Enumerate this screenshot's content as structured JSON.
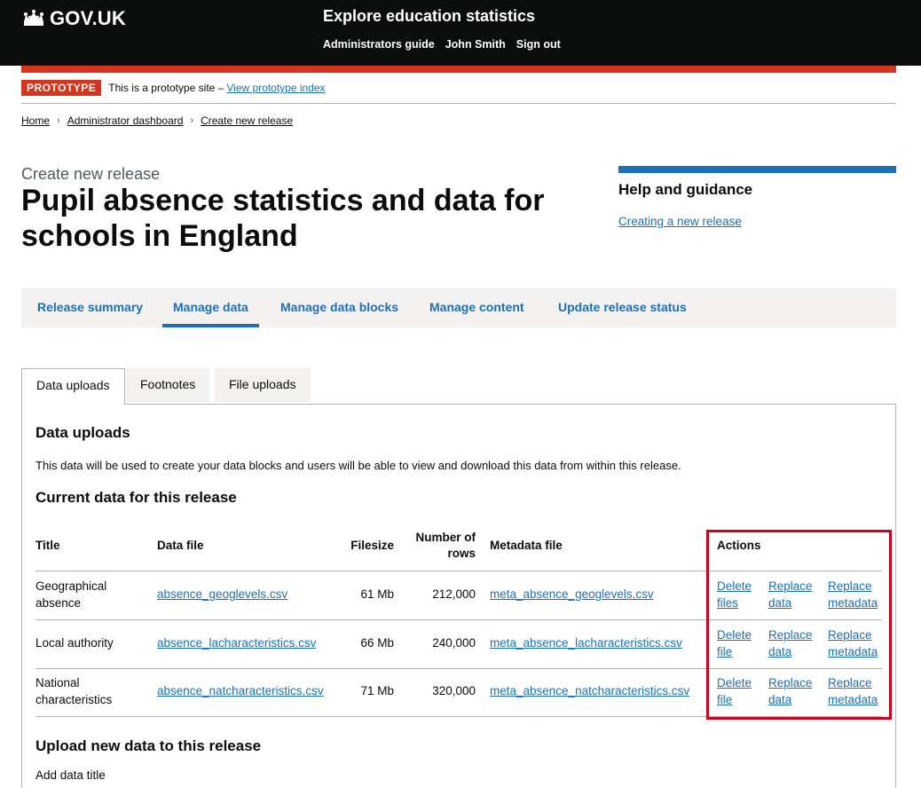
{
  "header": {
    "logo_text": "GOV.UK",
    "service_name": "Explore education statistics",
    "nav": [
      "Administrators guide",
      "John Smith",
      "Sign out"
    ]
  },
  "prototype": {
    "tag": "PROTOTYPE",
    "text": "This is a prototype site –",
    "link": "View prototype index"
  },
  "breadcrumb": [
    "Home",
    "Administrator dashboard",
    "Create new release"
  ],
  "page": {
    "caption": "Create new release",
    "title": "Pupil absence statistics and data for schools in England"
  },
  "help": {
    "heading": "Help and guidance",
    "link": "Creating a new release"
  },
  "primary_nav": [
    "Release summary",
    "Manage data",
    "Manage data blocks",
    "Manage content",
    "Update release status"
  ],
  "tabs": [
    "Data uploads",
    "Footnotes",
    "File uploads"
  ],
  "panel": {
    "heading": "Data uploads",
    "description": "This data will be used to create your data blocks and users will be able to view and download this data from within this release.",
    "current_heading": "Current data for this release",
    "table": {
      "headers": {
        "title": "Title",
        "data_file": "Data file",
        "filesize": "Filesize",
        "rows_line1": "Number of",
        "rows_line2": "rows",
        "metadata": "Metadata file",
        "actions": "Actions"
      },
      "rows": [
        {
          "title_line1": "Geographical",
          "title_line2": "absence",
          "data_file": "absence_geoglevels.csv",
          "filesize": "61 Mb",
          "rows": "212,000",
          "metadata": "meta_absence_geoglevels.csv",
          "a1_line1": "Delete",
          "a1_line2": "files",
          "a2_line1": "Replace",
          "a2_line2": "data",
          "a3_line1": "Replace",
          "a3_line2": "metadata"
        },
        {
          "title_line1": "Local authority",
          "title_line2": "",
          "data_file": "absence_lacharacteristics.csv",
          "filesize": "66 Mb",
          "rows": "240,000",
          "metadata": "meta_absence_lacharacteristics.csv",
          "a1_line1": "Delete",
          "a1_line2": "file",
          "a2_line1": "Replace",
          "a2_line2": "data",
          "a3_line1": "Replace",
          "a3_line2": "metadata"
        },
        {
          "title_line1": "National",
          "title_line2": "characteristics",
          "data_file": "absence_natcharacteristics.csv",
          "filesize": "71 Mb",
          "rows": "320,000",
          "metadata": "meta_absence_natcharacteristics.csv",
          "a1_line1": "Delete",
          "a1_line2": "file",
          "a2_line1": "Replace",
          "a2_line2": "data",
          "a3_line1": "Replace",
          "a3_line2": "metadata"
        }
      ]
    },
    "upload_heading": "Upload new data to this release",
    "add_title_label": "Add data title"
  },
  "colors": {
    "header_bg": "#0b0c0c",
    "accent_red": "#d4351c",
    "link_blue": "#1d70b8",
    "highlight_box": "#d0021b"
  }
}
